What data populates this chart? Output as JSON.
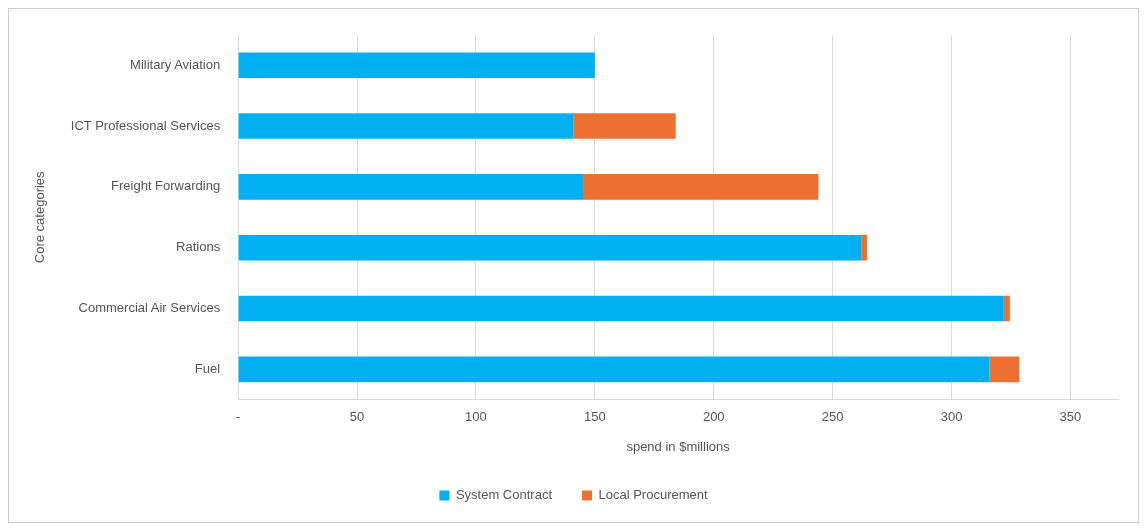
{
  "chart_data": {
    "type": "bar",
    "orientation": "horizontal",
    "stacked": true,
    "categories": [
      "Military Aviation",
      "ICT Professional Services",
      "Freight Forwarding",
      "Rations",
      "Commercial Air Services",
      "Fuel"
    ],
    "series": [
      {
        "name": "System Contract",
        "color": "#00b0f0",
        "values": [
          150,
          141,
          145,
          262,
          322,
          316
        ]
      },
      {
        "name": "Local Procurement",
        "color": "#ed7032",
        "values": [
          0,
          43,
          99,
          2.5,
          2.5,
          12.5
        ]
      }
    ],
    "xlabel": "spend in $millions",
    "ylabel": "Core categories",
    "xlim": [
      0,
      370
    ],
    "xticks": [
      {
        "value": 0,
        "label": "-"
      },
      50,
      100,
      150,
      200,
      250,
      300,
      350
    ],
    "grid": "x",
    "legend": "bottom"
  }
}
